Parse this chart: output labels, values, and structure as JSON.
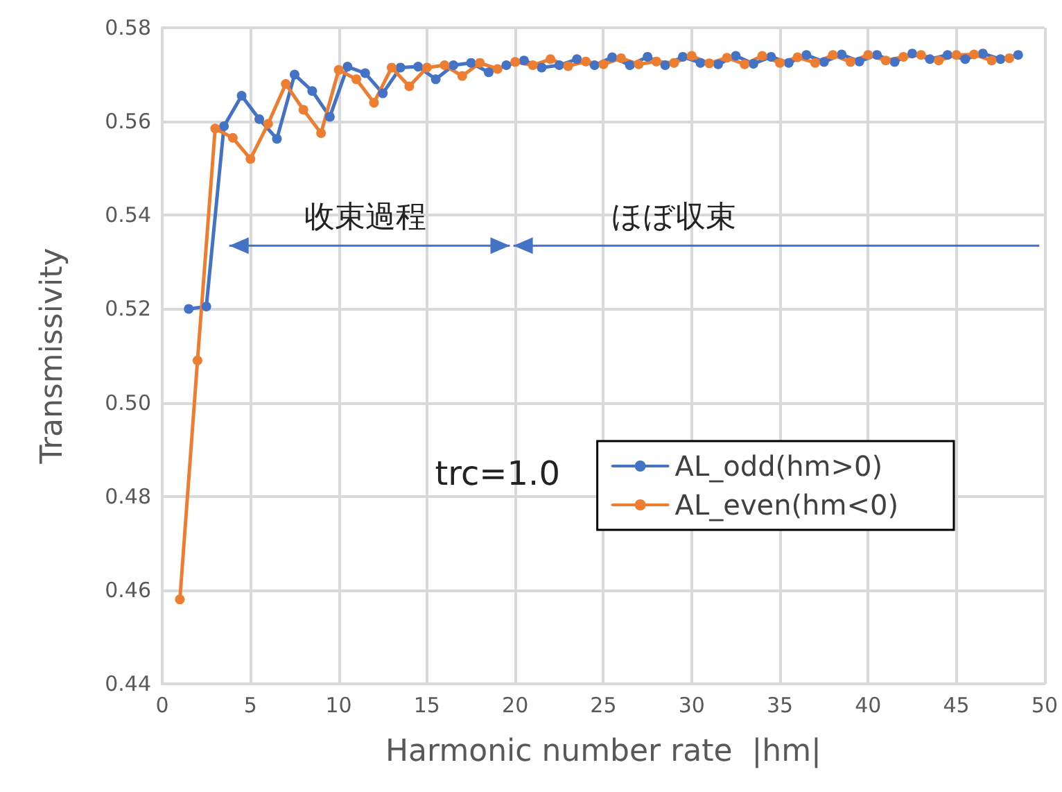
{
  "chart_data": {
    "type": "line",
    "xlabel": "Harmonic number rate  |hm|",
    "ylabel": "Transmissivity",
    "xlim": [
      0,
      50
    ],
    "xticks": [
      0,
      5,
      10,
      15,
      20,
      25,
      30,
      35,
      40,
      45,
      50
    ],
    "ylim": [
      0.44,
      0.58
    ],
    "yticks": [
      {
        "value": 0.44,
        "label": "0.44"
      },
      {
        "value": 0.46,
        "label": "0.46"
      },
      {
        "value": 0.48,
        "label": "0.48"
      },
      {
        "value": 0.5,
        "label": "0.50"
      },
      {
        "value": 0.52,
        "label": "0.52"
      },
      {
        "value": 0.54,
        "label": "0.54"
      },
      {
        "value": 0.56,
        "label": "0.56"
      },
      {
        "value": 0.58,
        "label": "0.58"
      }
    ],
    "grid": true,
    "legend": "right",
    "marker": "circle",
    "line_style": "solid",
    "annotations": [
      "trc=1.0",
      "收束過程",
      "ほぼ収束"
    ],
    "series": [
      {
        "name": "AL_odd(hm>0)",
        "color": "#4472c4",
        "x": [
          1.5,
          2.5,
          3.5,
          4.5,
          5.5,
          6.5,
          7.5,
          8.5,
          9.5,
          10.5,
          11.5,
          12.5,
          13.5,
          14.5,
          15.5,
          16.5,
          17.5,
          18.5,
          19.5,
          20.5,
          21.5,
          22.5,
          23.5,
          24.5,
          25.5,
          26.5,
          27.5,
          28.5,
          29.5,
          30.5,
          31.5,
          32.5,
          33.5,
          34.5,
          35.5,
          36.5,
          37.5,
          38.5,
          39.5,
          40.5,
          41.5,
          42.5,
          43.5,
          44.5,
          45.5,
          46.5,
          47.5,
          48.5
        ],
        "values": [
          0.52,
          0.5205,
          0.559,
          0.5655,
          0.5605,
          0.5563,
          0.57,
          0.5665,
          0.561,
          0.5717,
          0.5703,
          0.566,
          0.5715,
          0.5717,
          0.569,
          0.572,
          0.5725,
          0.5705,
          0.572,
          0.573,
          0.5715,
          0.572,
          0.5733,
          0.572,
          0.5737,
          0.572,
          0.5738,
          0.572,
          0.5738,
          0.5725,
          0.5722,
          0.574,
          0.5723,
          0.5738,
          0.5725,
          0.5742,
          0.5727,
          0.5743,
          0.5728,
          0.5742,
          0.5727,
          0.5745,
          0.5733,
          0.5742,
          0.5733,
          0.5745,
          0.5733,
          0.5742
        ]
      },
      {
        "name": "AL_even(hm<0)",
        "color": "#ed7d31",
        "x": [
          1,
          2,
          3,
          4,
          5,
          6,
          7,
          8,
          9,
          10,
          11,
          12,
          13,
          14,
          15,
          16,
          17,
          18,
          19,
          20,
          21,
          22,
          23,
          24,
          25,
          26,
          27,
          28,
          29,
          30,
          31,
          32,
          33,
          34,
          35,
          36,
          37,
          38,
          39,
          40,
          41,
          42,
          43,
          44,
          45,
          46,
          47,
          48
        ],
        "values": [
          0.458,
          0.509,
          0.5585,
          0.5565,
          0.552,
          0.5595,
          0.568,
          0.5625,
          0.5575,
          0.571,
          0.569,
          0.564,
          0.5715,
          0.5675,
          0.5715,
          0.572,
          0.5697,
          0.5725,
          0.5712,
          0.5727,
          0.572,
          0.5733,
          0.5718,
          0.5728,
          0.5722,
          0.5735,
          0.5722,
          0.5728,
          0.5725,
          0.574,
          0.5724,
          0.5736,
          0.5722,
          0.574,
          0.5725,
          0.5737,
          0.5725,
          0.5742,
          0.5727,
          0.5742,
          0.573,
          0.5738,
          0.5742,
          0.573,
          0.5742,
          0.5743,
          0.573,
          0.5735
        ]
      }
    ]
  }
}
